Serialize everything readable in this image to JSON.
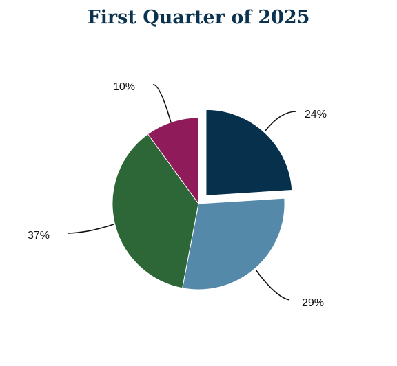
{
  "chart_data": {
    "type": "pie",
    "title": "First Quarter of 2025",
    "slices": [
      {
        "value": 24,
        "label": "24%",
        "color": "#06304c",
        "exploded": true
      },
      {
        "value": 29,
        "label": "29%",
        "color": "#5589aa",
        "exploded": false
      },
      {
        "value": 37,
        "label": "37%",
        "color": "#2e6737",
        "exploded": false
      },
      {
        "value": 10,
        "label": "10%",
        "color": "#8f1b5a",
        "exploded": false
      }
    ],
    "start_angle": "12 o'clock",
    "direction": "clockwise",
    "label_style": "outside with curved leader lines"
  }
}
